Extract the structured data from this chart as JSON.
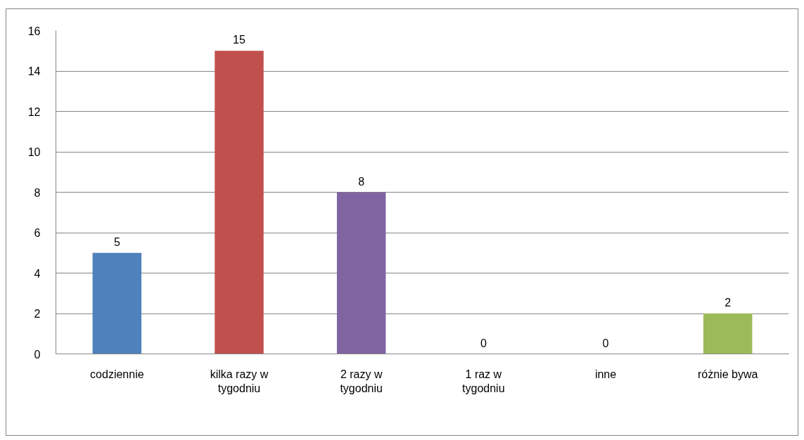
{
  "chart_data": {
    "type": "bar",
    "categories": [
      "codziennie",
      "kilka razy w tygodniu",
      "2 razy w tygodniu",
      "1 raz w tygodniu",
      "inne",
      "różnie bywa"
    ],
    "values": [
      5,
      15,
      8,
      0,
      0,
      2
    ],
    "colors": [
      "#4f81bd",
      "#c0504d",
      "#8064a2",
      "#4bacc6",
      "#f79646",
      "#9bbb59"
    ],
    "ylim": [
      0,
      16
    ],
    "yticks": [
      0,
      2,
      4,
      6,
      8,
      10,
      12,
      14,
      16
    ],
    "grid": "y",
    "data_labels": true
  }
}
